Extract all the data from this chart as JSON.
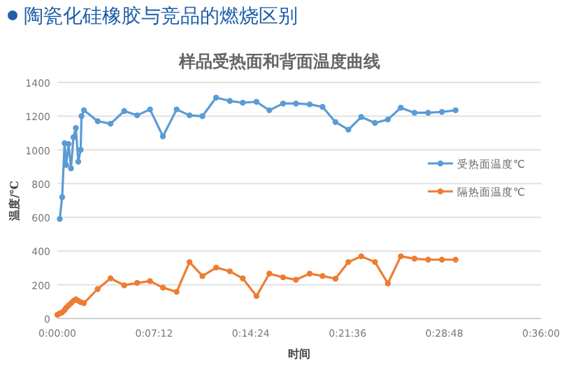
{
  "chart_data": {
    "type": "line",
    "title": "样品受热面和背面温度曲线",
    "annotations": [
      "陶瓷化硅橡胶与竞品的燃烧区别"
    ],
    "xlabel": "时间",
    "ylabel": "温度/℃",
    "xlim": [
      0,
      0.6
    ],
    "xticks": [
      {
        "value": 0,
        "label": "0:00:00"
      },
      {
        "value": 0.12,
        "label": "0:07:12"
      },
      {
        "value": 0.24,
        "label": "0:14:24"
      },
      {
        "value": 0.36,
        "label": "0:21:36"
      },
      {
        "value": 0.48,
        "label": "0:28:48"
      },
      {
        "value": 0.6,
        "label": "0:36:00"
      }
    ],
    "ylim": [
      0,
      1400
    ],
    "yticks": [
      0,
      200,
      400,
      600,
      800,
      1000,
      1200,
      1400
    ],
    "grid": "y",
    "legend": "right",
    "marker": "circle",
    "line_style": "solid",
    "series": [
      {
        "name": "受热面温度℃",
        "color": "#5b9bd5",
        "x": [
          0.003,
          0.006,
          0.009,
          0.011,
          0.014,
          0.017,
          0.02,
          0.023,
          0.026,
          0.029,
          0.03,
          0.033,
          0.05,
          0.066,
          0.083,
          0.099,
          0.115,
          0.131,
          0.148,
          0.164,
          0.18,
          0.197,
          0.214,
          0.23,
          0.247,
          0.263,
          0.28,
          0.296,
          0.313,
          0.329,
          0.345,
          0.361,
          0.377,
          0.394,
          0.41,
          0.426,
          0.443,
          0.46,
          0.477,
          0.494
        ],
        "values": [
          590,
          720,
          1040,
          910,
          1035,
          890,
          1075,
          1130,
          930,
          1000,
          1200,
          1235,
          1170,
          1155,
          1230,
          1205,
          1240,
          1080,
          1240,
          1205,
          1200,
          1310,
          1290,
          1280,
          1285,
          1235,
          1275,
          1275,
          1270,
          1255,
          1165,
          1120,
          1195,
          1160,
          1180,
          1250,
          1220,
          1220,
          1225,
          1235
        ]
      },
      {
        "name": "隔热面温度℃",
        "color": "#ed7d31",
        "x": [
          0,
          0.003,
          0.006,
          0.009,
          0.011,
          0.014,
          0.017,
          0.02,
          0.023,
          0.026,
          0.029,
          0.033,
          0.05,
          0.066,
          0.083,
          0.099,
          0.115,
          0.131,
          0.148,
          0.164,
          0.18,
          0.197,
          0.214,
          0.23,
          0.247,
          0.263,
          0.28,
          0.296,
          0.313,
          0.329,
          0.345,
          0.361,
          0.377,
          0.394,
          0.41,
          0.426,
          0.443,
          0.46,
          0.477,
          0.494
        ],
        "values": [
          22,
          30,
          36,
          50,
          64,
          78,
          91,
          105,
          114,
          105,
          97,
          91,
          175,
          238,
          197,
          211,
          222,
          183,
          158,
          335,
          252,
          302,
          280,
          238,
          133,
          266,
          244,
          230,
          266,
          252,
          236,
          335,
          369,
          335,
          208,
          369,
          355,
          349,
          349,
          349
        ]
      }
    ]
  }
}
